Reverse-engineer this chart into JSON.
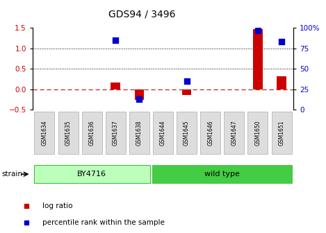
{
  "title": "GDS94 / 3496",
  "samples": [
    "GSM1634",
    "GSM1635",
    "GSM1636",
    "GSM1637",
    "GSM1638",
    "GSM1644",
    "GSM1645",
    "GSM1646",
    "GSM1647",
    "GSM1650",
    "GSM1651"
  ],
  "log_ratios": [
    0.0,
    0.0,
    0.0,
    0.17,
    -0.27,
    0.0,
    -0.15,
    0.0,
    0.0,
    1.47,
    0.32
  ],
  "percentile_ranks": [
    null,
    null,
    null,
    85,
    13,
    null,
    35,
    null,
    null,
    97,
    83
  ],
  "ylim_left": [
    -0.5,
    1.5
  ],
  "ylim_right": [
    0,
    100
  ],
  "yticks_left": [
    -0.5,
    0.0,
    0.5,
    1.0,
    1.5
  ],
  "yticks_right": [
    0,
    25,
    50,
    75,
    100
  ],
  "hlines_dotted": [
    0.5,
    1.0
  ],
  "hline_zero": 0.0,
  "bar_color": "#cc0000",
  "scatter_color": "#0000cc",
  "zero_line_color": "#cc2222",
  "groups": [
    {
      "label": "BY4716",
      "start": 0,
      "end": 5,
      "color": "#bbffbb",
      "border_color": "#44bb44"
    },
    {
      "label": "wild type",
      "start": 5,
      "end": 11,
      "color": "#44cc44",
      "border_color": "#44cc44"
    }
  ],
  "strain_label": "strain",
  "legend_items": [
    {
      "label": "log ratio",
      "color": "#cc0000"
    },
    {
      "label": "percentile rank within the sample",
      "color": "#0000cc"
    }
  ],
  "bar_width": 0.4,
  "scatter_size": 28,
  "tick_label_color_left": "#cc0000",
  "tick_label_color_right": "#0000cc",
  "background_color": "#ffffff",
  "title_fontsize": 10,
  "axis_fontsize": 8,
  "tick_fontsize": 7.5
}
